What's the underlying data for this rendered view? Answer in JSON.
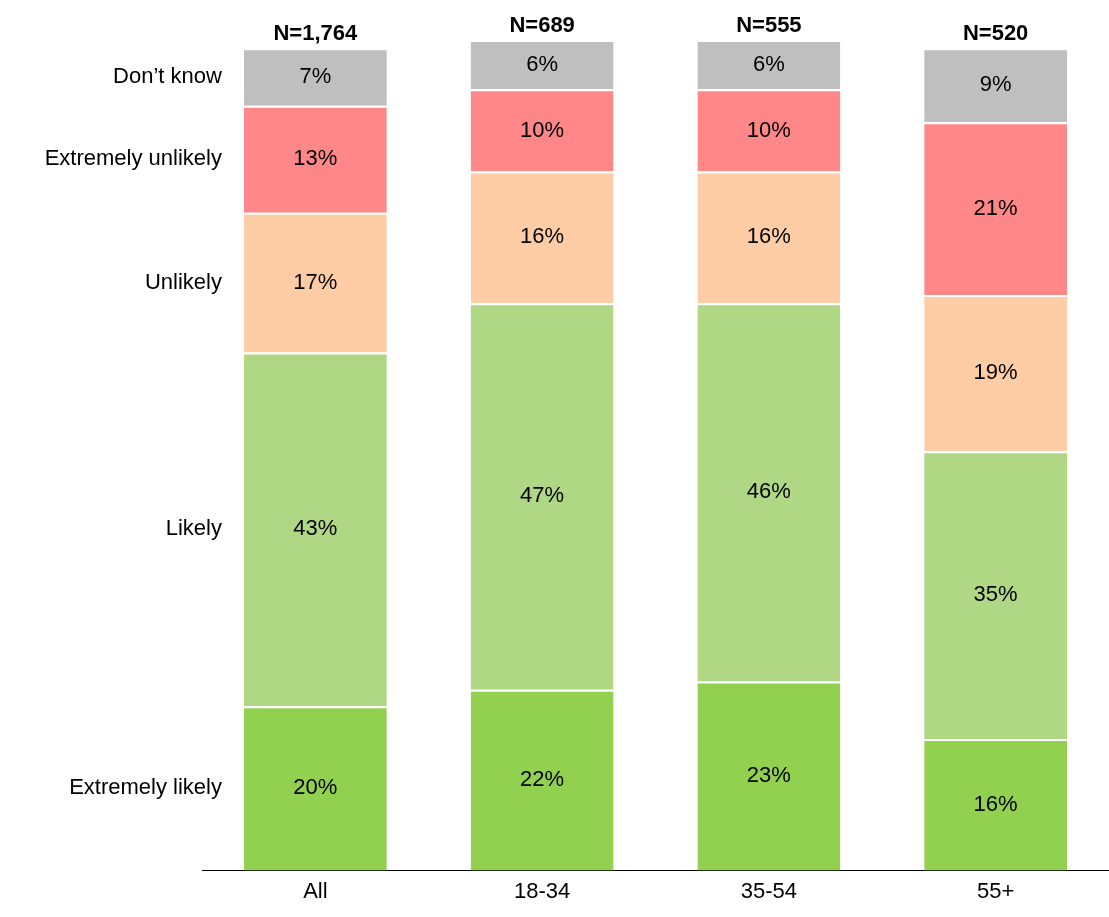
{
  "chart_data": {
    "type": "bar",
    "stacked": true,
    "categories": [
      "All",
      "18-34",
      "35-54",
      "55+"
    ],
    "ylim": [
      0,
      101
    ],
    "tick_labels": "x",
    "grid": false,
    "series": [
      {
        "name": "Extremely likely",
        "color": "#92d050",
        "values": [
          20,
          22,
          23,
          16
        ],
        "value_labels": [
          "20%",
          "22%",
          "23%",
          "16%"
        ]
      },
      {
        "name": "Likely",
        "color": "#b0d784",
        "values": [
          43,
          47,
          46,
          35
        ],
        "value_labels": [
          "43%",
          "47%",
          "46%",
          "35%"
        ]
      },
      {
        "name": "Unlikely",
        "color": "#ffcda5",
        "values": [
          17,
          16,
          16,
          19
        ],
        "value_labels": [
          "17%",
          "16%",
          "16%",
          "19%"
        ]
      },
      {
        "name": "Extremely unlikely",
        "color": "#ff8787",
        "values": [
          13,
          10,
          10,
          21
        ],
        "value_labels": [
          "13%",
          "10%",
          "10%",
          "21%"
        ]
      },
      {
        "name": "Don’t know",
        "color": "#bfbfbf",
        "values": [
          7,
          6,
          6,
          9
        ],
        "value_labels": [
          "7%",
          "6%",
          "6%",
          "9%"
        ]
      }
    ],
    "annotations": [
      {
        "text": "N=1,764",
        "x": "All",
        "y": 100
      },
      {
        "text": "N=689",
        "x": "18-34",
        "y": 101
      },
      {
        "text": "N=555",
        "x": "35-54",
        "y": 101
      },
      {
        "text": "N=520",
        "x": "55+",
        "y": 100
      }
    ]
  }
}
